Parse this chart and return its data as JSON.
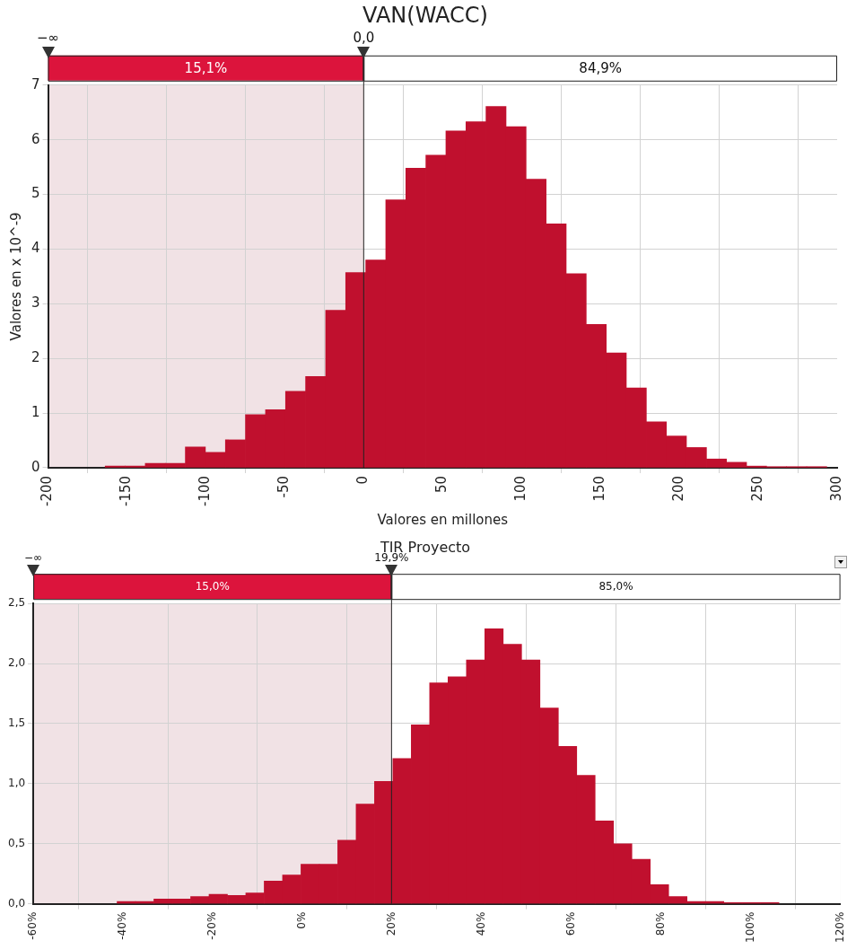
{
  "chart_data": [
    {
      "type": "histogram",
      "title": "VAN(WACC)",
      "xlabel": "Valores en millones",
      "ylabel": "Valores en x 10^-9",
      "color": "#c0102e",
      "bins": [
        -163.8,
        -151.1,
        -138.4,
        -125.7,
        -113,
        -100.3,
        -87.6,
        -74.9,
        -62.2,
        -49.5,
        -36.8,
        -24.1,
        -11.4,
        1.3,
        14,
        26.7,
        39.4,
        52.1,
        64.8,
        77.5,
        90.2,
        102.9,
        115.6,
        128.3,
        141,
        153.7,
        166.4,
        179.1,
        191.8,
        204.5,
        217.2,
        229.9,
        242.6,
        255.3,
        268,
        280.7,
        293.4
      ],
      "values": [
        0.03,
        0.03,
        0.08,
        0.08,
        0.38,
        0.28,
        0.51,
        0.97,
        1.06,
        1.4,
        1.67,
        2.88,
        3.57,
        3.8,
        4.9,
        5.48,
        5.72,
        6.16,
        6.33,
        6.61,
        6.24,
        5.28,
        4.46,
        3.55,
        2.62,
        2.1,
        1.46,
        0.84,
        0.58,
        0.37,
        0.16,
        0.1,
        0.03,
        0.02,
        0.02,
        0.02
      ],
      "xlim": [
        -200,
        300
      ],
      "xticks": [
        -200,
        -150,
        -100,
        -50,
        0,
        50,
        100,
        150,
        200,
        250,
        300
      ],
      "ylim": [
        0,
        7
      ],
      "yticks": [
        0,
        1,
        2,
        3,
        4,
        5,
        6,
        7
      ],
      "grid": true,
      "legend": false,
      "ref_lines": [
        {
          "axis": "x",
          "value": 0,
          "label": "0,0"
        }
      ],
      "bands": [
        {
          "axis": "x",
          "from": -200,
          "to": 0,
          "label": "15,1%",
          "color": "#dc143c"
        },
        {
          "axis": "x",
          "from": 0,
          "to": 300,
          "label": "84,9%",
          "color": "#ffffff"
        }
      ],
      "annotations": [
        "−∞"
      ]
    },
    {
      "type": "histogram",
      "title": "TIR Proyecto",
      "color": "#c0102e",
      "bins": [
        -41.3,
        -37.2,
        -33.1,
        -29,
        -24.9,
        -20.8,
        -16.7,
        -12.6,
        -8.5,
        -4.4,
        -0.3,
        3.8,
        7.9,
        12,
        16.1,
        20.2,
        24.3,
        28.4,
        32.5,
        36.6,
        40.7,
        44.8,
        48.9,
        53,
        57.1,
        61.2,
        65.3,
        69.4,
        73.5,
        77.6,
        81.7,
        85.8,
        89.9,
        94,
        98.1,
        102.2,
        106.3
      ],
      "values": [
        0.02,
        0.02,
        0.04,
        0.04,
        0.06,
        0.08,
        0.07,
        0.09,
        0.19,
        0.24,
        0.33,
        0.33,
        0.53,
        0.83,
        1.02,
        1.21,
        1.49,
        1.84,
        1.89,
        2.03,
        2.29,
        2.16,
        2.03,
        1.63,
        1.31,
        1.07,
        0.69,
        0.5,
        0.37,
        0.16,
        0.06,
        0.02,
        0.02,
        0.01,
        0.01,
        0.01
      ],
      "xlim": [
        -60,
        120
      ],
      "xticks": [
        {
          "value": -60,
          "label": "-60%"
        },
        {
          "value": -40,
          "label": "-40%"
        },
        {
          "value": -20,
          "label": "-20%"
        },
        {
          "value": 0,
          "label": "0%"
        },
        {
          "value": 20,
          "label": "20%"
        },
        {
          "value": 40,
          "label": "40%"
        },
        {
          "value": 60,
          "label": "60%"
        },
        {
          "value": 80,
          "label": "80%"
        },
        {
          "value": 100,
          "label": "100%"
        },
        {
          "value": 120,
          "label": "120%"
        }
      ],
      "ylim": [
        0,
        2.5
      ],
      "yticks": [
        {
          "value": 0,
          "label": "0,0"
        },
        {
          "value": 0.5,
          "label": "0,5"
        },
        {
          "value": 1,
          "label": "1,0"
        },
        {
          "value": 1.5,
          "label": "1,5"
        },
        {
          "value": 2,
          "label": "2,0"
        },
        {
          "value": 2.5,
          "label": "2,5"
        }
      ],
      "grid": true,
      "legend": false,
      "ref_lines": [
        {
          "axis": "x",
          "value": 19.9,
          "label": "19,9%"
        }
      ],
      "bands": [
        {
          "axis": "x",
          "from": -60,
          "to": 19.9,
          "label": "15,0%",
          "color": "#dc143c"
        },
        {
          "axis": "x",
          "from": 19.9,
          "to": 120,
          "label": "85,0%",
          "color": "#ffffff"
        }
      ],
      "annotations": [
        "−∞"
      ]
    }
  ]
}
